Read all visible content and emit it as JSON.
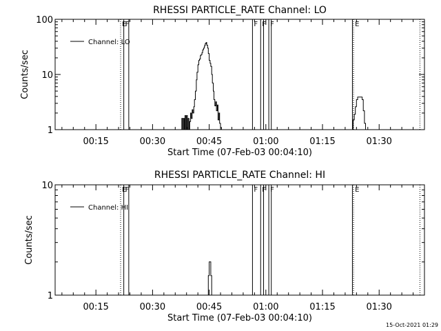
{
  "footer": {
    "timestamp": "15-Oct-2021 01:29"
  },
  "chart_data": [
    {
      "type": "line",
      "title": "RHESSI PARTICLE_RATE Channel: LO",
      "xlabel": "Start Time (07-Feb-03 00:04:10)",
      "ylabel": "Counts/sec",
      "yscale": "log",
      "xlim": [
        0.07,
        1.7
      ],
      "ylim": [
        1,
        100
      ],
      "x_ticks": [
        {
          "v": 0.25,
          "label": "00:15"
        },
        {
          "v": 0.5,
          "label": "00:30"
        },
        {
          "v": 0.75,
          "label": "00:45"
        },
        {
          "v": 1.0,
          "label": "01:00"
        },
        {
          "v": 1.25,
          "label": "01:15"
        },
        {
          "v": 1.5,
          "label": "01:30"
        }
      ],
      "y_ticks": [
        {
          "v": 1,
          "label": "1"
        },
        {
          "v": 10,
          "label": "10"
        },
        {
          "v": 100,
          "label": "100"
        }
      ],
      "legend": {
        "label": "Channel: LO",
        "position": "top-left"
      },
      "markers": [
        {
          "x": 0.359,
          "style": "dotted",
          "label": "E"
        },
        {
          "x": 0.373,
          "style": "solid",
          "label": "F"
        },
        {
          "x": 0.395,
          "style": "solid",
          "label": ""
        },
        {
          "x": 0.941,
          "style": "solid",
          "label": "F"
        },
        {
          "x": 0.977,
          "style": "solid",
          "label": "F"
        },
        {
          "x": 0.99,
          "style": "solid",
          "label": ""
        },
        {
          "x": 1.013,
          "style": "solid",
          "label": "F"
        },
        {
          "x": 1.024,
          "style": "solid",
          "label": ""
        },
        {
          "x": 1.382,
          "style": "solid",
          "label": ""
        },
        {
          "x": 1.387,
          "style": "dotted",
          "label": "E"
        },
        {
          "x": 1.68,
          "style": "dotted",
          "label": ""
        }
      ],
      "series": [
        {
          "x": [
            0.627,
            0.629,
            0.633,
            0.636,
            0.64,
            0.643,
            0.647,
            0.65,
            0.654,
            0.657,
            0.661,
            0.664,
            0.668,
            0.671,
            0.675,
            0.678,
            0.682,
            0.685,
            0.689,
            0.693,
            0.696,
            0.7,
            0.704,
            0.707,
            0.711,
            0.714,
            0.718,
            0.721,
            0.725,
            0.729,
            0.732,
            0.736,
            0.739,
            0.743,
            0.746,
            0.75,
            0.754,
            0.757,
            0.761,
            0.764,
            0.768,
            0.771,
            0.775,
            0.779,
            0.782,
            0.786,
            0.789,
            0.793,
            0.796,
            0.8,
            0.804,
            0.807,
            0.811,
            0.814,
            0.818,
            0.821,
            0.825,
            0.829,
            0.832,
            0.836,
            0.839,
            0.843,
            0.846,
            0.85,
            0.852
          ],
          "y": [
            1,
            1.6,
            1,
            1.6,
            1,
            1.8,
            1,
            1.8,
            1,
            1.6,
            1,
            1.4,
            2.0,
            1.6,
            2.3,
            2.0,
            2.6,
            3.5,
            5.0,
            8.0,
            11,
            15,
            18,
            19,
            22,
            23,
            25,
            28,
            30,
            33,
            36,
            38,
            34,
            30,
            24,
            18,
            16,
            14,
            10,
            7,
            5,
            3.5,
            2.7,
            3.2,
            2.2,
            2.8,
            1.5,
            2.0,
            1.3,
            1.1,
            1,
            1,
            1,
            1,
            1,
            1,
            1,
            1,
            1,
            1,
            1,
            1,
            1,
            1,
            1
          ]
        },
        {
          "x": [
            1.38,
            1.385,
            1.39,
            1.395,
            1.4,
            1.405,
            1.41,
            1.415,
            1.42,
            1.425,
            1.43,
            1.435,
            1.44,
            1.445
          ],
          "y": [
            1,
            1.5,
            1.9,
            2.6,
            3.5,
            3.9,
            3.9,
            3.9,
            3.9,
            3.5,
            2.2,
            1.3,
            1,
            1
          ]
        }
      ]
    },
    {
      "type": "line",
      "title": "RHESSI PARTICLE_RATE Channel: HI",
      "xlabel": "Start Time (07-Feb-03 00:04:10)",
      "ylabel": "Counts/sec",
      "yscale": "log",
      "xlim": [
        0.07,
        1.7
      ],
      "ylim": [
        1,
        10
      ],
      "x_ticks": [
        {
          "v": 0.25,
          "label": "00:15"
        },
        {
          "v": 0.5,
          "label": "00:30"
        },
        {
          "v": 0.75,
          "label": "00:45"
        },
        {
          "v": 1.0,
          "label": "01:00"
        },
        {
          "v": 1.25,
          "label": "01:15"
        },
        {
          "v": 1.5,
          "label": "01:30"
        }
      ],
      "y_ticks": [
        {
          "v": 1,
          "label": "1"
        },
        {
          "v": 10,
          "label": "10"
        }
      ],
      "legend": {
        "label": "Channel: HI",
        "position": "top-left"
      },
      "markers": [
        {
          "x": 0.359,
          "style": "dotted",
          "label": "E"
        },
        {
          "x": 0.373,
          "style": "solid",
          "label": "F"
        },
        {
          "x": 0.395,
          "style": "solid",
          "label": ""
        },
        {
          "x": 0.941,
          "style": "solid",
          "label": "F"
        },
        {
          "x": 0.977,
          "style": "solid",
          "label": "F"
        },
        {
          "x": 0.99,
          "style": "solid",
          "label": ""
        },
        {
          "x": 1.013,
          "style": "solid",
          "label": "F"
        },
        {
          "x": 1.024,
          "style": "solid",
          "label": ""
        },
        {
          "x": 1.382,
          "style": "solid",
          "label": ""
        },
        {
          "x": 1.387,
          "style": "dotted",
          "label": "E"
        },
        {
          "x": 1.68,
          "style": "dotted",
          "label": ""
        }
      ],
      "series": [
        {
          "x": [
            0.743,
            0.746,
            0.75,
            0.754,
            0.757,
            0.761,
            0.764
          ],
          "y": [
            1,
            1.5,
            2.0,
            2.0,
            1.5,
            1,
            1
          ]
        }
      ]
    }
  ]
}
